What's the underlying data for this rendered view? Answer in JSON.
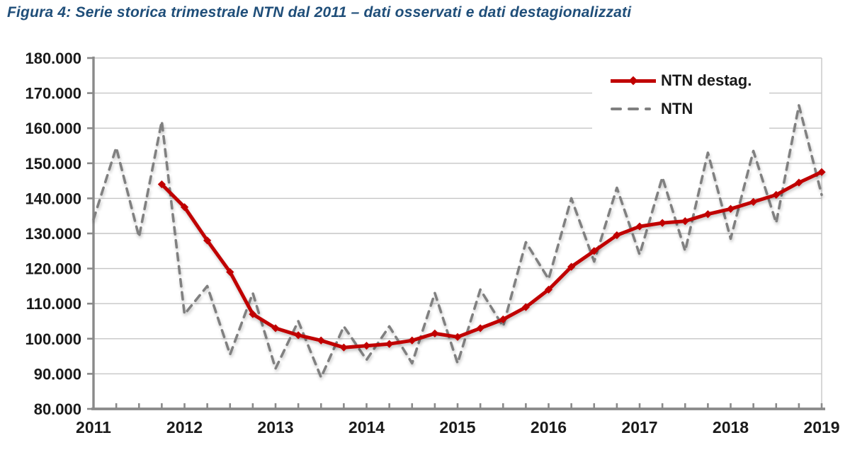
{
  "colors": {
    "title": "#1F4E79",
    "destag_line": "#C00000",
    "ntn_line": "#808080",
    "gridline": "#C6C6C6",
    "axis": "#8A8A8A",
    "tick_label": "#1a1a1a"
  },
  "legend": {
    "items": [
      {
        "label": "NTN destag.",
        "series": "destag"
      },
      {
        "label": "NTN",
        "series": "ntn"
      }
    ]
  },
  "chart_data": {
    "type": "line",
    "title": "Figura 4: Serie storica trimestrale NTN dal 2011 – dati osservati e dati destagionalizzati",
    "xlabel": "",
    "ylabel": "",
    "ylim": [
      80000,
      180000
    ],
    "y_step": 10000,
    "grid": "horizontal",
    "legend_position": "top-right",
    "y_tick_labels": [
      "180.000",
      "170.000",
      "160.000",
      "150.000",
      "140.000",
      "130.000",
      "120.000",
      "110.000",
      "100.000",
      "90.000",
      "80.000"
    ],
    "x_tick_labels": [
      "2011",
      "2012",
      "2013",
      "2014",
      "2015",
      "2016",
      "2017",
      "2018",
      "2019"
    ],
    "x": [
      "2011Q1",
      "2011Q2",
      "2011Q3",
      "2011Q4",
      "2012Q1",
      "2012Q2",
      "2012Q3",
      "2012Q4",
      "2013Q1",
      "2013Q2",
      "2013Q3",
      "2013Q4",
      "2014Q1",
      "2014Q2",
      "2014Q3",
      "2014Q4",
      "2015Q1",
      "2015Q2",
      "2015Q3",
      "2015Q4",
      "2016Q1",
      "2016Q2",
      "2016Q3",
      "2016Q4",
      "2017Q1",
      "2017Q2",
      "2017Q3",
      "2017Q4",
      "2018Q1",
      "2018Q2",
      "2018Q3",
      "2018Q4",
      "2019Q1"
    ],
    "series": [
      {
        "name": "NTN destag.",
        "color": "#C00000",
        "style": "solid-diamond",
        "values": [
          null,
          null,
          null,
          144000,
          137500,
          128000,
          119000,
          107000,
          103000,
          101000,
          99500,
          97500,
          98000,
          98500,
          99500,
          101500,
          100500,
          103000,
          105500,
          109000,
          114000,
          120500,
          125000,
          129500,
          132000,
          133000,
          133500,
          135500,
          137000,
          139000,
          141000,
          144500,
          147500
        ]
      },
      {
        "name": "NTN",
        "color": "#808080",
        "style": "dashed",
        "values": [
          134000,
          154500,
          129000,
          162000,
          107000,
          115000,
          95500,
          113000,
          91500,
          105000,
          89000,
          103500,
          94000,
          103500,
          93000,
          113000,
          93000,
          114000,
          103500,
          127500,
          117000,
          140000,
          122000,
          143000,
          124000,
          146000,
          125000,
          153000,
          128500,
          153500,
          133000,
          166500,
          141000
        ]
      }
    ]
  }
}
